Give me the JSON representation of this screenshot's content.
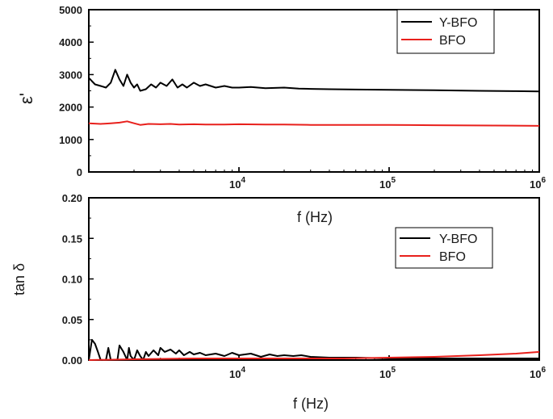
{
  "chart_data": [
    {
      "type": "line",
      "panel": "top",
      "ylabel": "ε'",
      "xlabel": "f (Hz)",
      "xscale": "log",
      "xlim": [
        1000,
        1000000
      ],
      "ylim": [
        0,
        5000
      ],
      "yticks": [
        "0",
        "1000",
        "2000",
        "3000",
        "4000",
        "5000"
      ],
      "xticks": [
        {
          "base": "10",
          "exp": "4",
          "value": 10000
        },
        {
          "base": "10",
          "exp": "5",
          "value": 100000
        },
        {
          "base": "10",
          "exp": "6",
          "value": 1000000
        }
      ],
      "legend": {
        "position": "top-right"
      },
      "series": [
        {
          "name": "Y-BFO",
          "color": "#000000",
          "x": [
            1000,
            1100,
            1200,
            1300,
            1400,
            1500,
            1600,
            1700,
            1800,
            1900,
            2000,
            2100,
            2200,
            2400,
            2600,
            2800,
            3000,
            3300,
            3600,
            3900,
            4200,
            4500,
            5000,
            5500,
            6000,
            7000,
            8000,
            9000,
            10000,
            12000,
            15000,
            20000,
            25000,
            30000,
            40000,
            60000,
            100000,
            200000,
            400000,
            700000,
            1000000
          ],
          "y": [
            2900,
            2700,
            2650,
            2600,
            2750,
            3150,
            2850,
            2650,
            3000,
            2750,
            2600,
            2700,
            2500,
            2550,
            2700,
            2600,
            2750,
            2650,
            2850,
            2600,
            2700,
            2600,
            2750,
            2650,
            2700,
            2600,
            2650,
            2600,
            2600,
            2620,
            2580,
            2600,
            2570,
            2560,
            2550,
            2540,
            2530,
            2520,
            2500,
            2490,
            2480
          ]
        },
        {
          "name": "BFO",
          "color": "#e8201c",
          "x": [
            1000,
            1200,
            1400,
            1600,
            1800,
            2000,
            2200,
            2500,
            3000,
            3500,
            4000,
            5000,
            6000,
            8000,
            10000,
            15000,
            20000,
            30000,
            50000,
            100000,
            200000,
            500000,
            1000000
          ],
          "y": [
            1500,
            1480,
            1500,
            1520,
            1560,
            1500,
            1450,
            1480,
            1470,
            1480,
            1460,
            1470,
            1460,
            1460,
            1470,
            1460,
            1460,
            1450,
            1450,
            1450,
            1440,
            1430,
            1420
          ]
        }
      ]
    },
    {
      "type": "line",
      "panel": "bottom",
      "ylabel": "tan δ",
      "xlabel": "f (Hz)",
      "xscale": "log",
      "xlim": [
        1000,
        1000000
      ],
      "ylim": [
        0,
        0.2
      ],
      "yticks": [
        "0.00",
        "0.05",
        "0.10",
        "0.15",
        "0.20"
      ],
      "xticks": [
        {
          "base": "10",
          "exp": "4",
          "value": 10000
        },
        {
          "base": "10",
          "exp": "5",
          "value": 100000
        },
        {
          "base": "10",
          "exp": "6",
          "value": 1000000
        }
      ],
      "legend": {
        "position": "center-right"
      },
      "series": [
        {
          "name": "Y-BFO",
          "color": "#000000",
          "x": [
            1000,
            1050,
            1100,
            1150,
            1200,
            1300,
            1350,
            1400,
            1500,
            1550,
            1600,
            1700,
            1800,
            1850,
            1900,
            2000,
            2100,
            2200,
            2300,
            2400,
            2500,
            2700,
            2900,
            3000,
            3200,
            3500,
            3800,
            4000,
            4300,
            4700,
            5000,
            5500,
            6000,
            7000,
            8000,
            9000,
            10000,
            12000,
            14000,
            16000,
            18000,
            20000,
            23000,
            26000,
            30000,
            40000,
            60000,
            100000,
            200000,
            400000,
            700000,
            1000000
          ],
          "y": [
            0.0,
            0.025,
            0.02,
            0.01,
            0.0,
            0.0,
            0.015,
            0.0,
            0.0,
            0.0,
            0.018,
            0.01,
            0.0,
            0.015,
            0.005,
            0.0,
            0.012,
            0.005,
            0.0,
            0.01,
            0.005,
            0.012,
            0.006,
            0.015,
            0.01,
            0.013,
            0.008,
            0.012,
            0.006,
            0.01,
            0.007,
            0.009,
            0.006,
            0.008,
            0.005,
            0.009,
            0.006,
            0.008,
            0.004,
            0.007,
            0.005,
            0.006,
            0.005,
            0.006,
            0.004,
            0.003,
            0.003,
            0.002,
            0.002,
            0.002,
            0.002,
            0.002
          ]
        },
        {
          "name": "BFO",
          "color": "#e8201c",
          "x": [
            1000,
            2000,
            5000,
            10000,
            20000,
            50000,
            100000,
            200000,
            400000,
            700000,
            1000000
          ],
          "y": [
            0.0,
            0.001,
            0.002,
            0.002,
            0.002,
            0.002,
            0.003,
            0.004,
            0.006,
            0.008,
            0.01
          ]
        }
      ]
    }
  ]
}
